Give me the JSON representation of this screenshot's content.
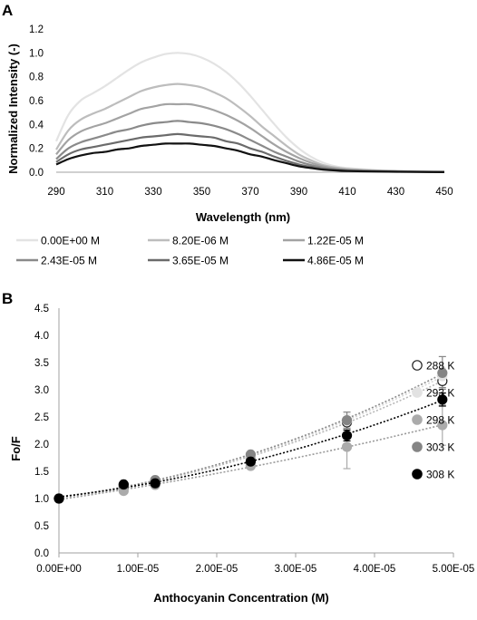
{
  "chart_data": [
    {
      "panel": "A",
      "type": "line",
      "xlabel": "Wavelength (nm)",
      "ylabel": "Normalized Intensity (-)",
      "xlim": [
        290,
        450
      ],
      "ylim": [
        0,
        1.2
      ],
      "xticks": [
        "290",
        "310",
        "330",
        "350",
        "370",
        "390",
        "410",
        "430",
        "450"
      ],
      "yticks": [
        "0.0",
        "0.2",
        "0.4",
        "0.6",
        "0.8",
        "1.0",
        "1.2"
      ],
      "legend_position": "bottom",
      "x": [
        290,
        295,
        300,
        305,
        310,
        315,
        320,
        325,
        330,
        335,
        340,
        345,
        350,
        355,
        360,
        365,
        370,
        375,
        380,
        385,
        390,
        395,
        400,
        405,
        410,
        420,
        430,
        440,
        450
      ],
      "series": [
        {
          "name": "0.00E+00 M",
          "color": "#e3e3e3",
          "width": 2.2,
          "values": [
            0.26,
            0.48,
            0.6,
            0.66,
            0.72,
            0.79,
            0.86,
            0.92,
            0.96,
            0.99,
            1.0,
            0.99,
            0.96,
            0.91,
            0.84,
            0.75,
            0.64,
            0.52,
            0.4,
            0.29,
            0.2,
            0.13,
            0.08,
            0.05,
            0.035,
            0.02,
            0.012,
            0.008,
            0.005
          ]
        },
        {
          "name": "8.20E-06 M",
          "color": "#bdbdbd",
          "width": 2.2,
          "values": [
            0.19,
            0.35,
            0.44,
            0.49,
            0.53,
            0.58,
            0.63,
            0.68,
            0.71,
            0.73,
            0.74,
            0.73,
            0.71,
            0.67,
            0.62,
            0.55,
            0.47,
            0.38,
            0.3,
            0.22,
            0.15,
            0.1,
            0.06,
            0.04,
            0.027,
            0.016,
            0.01,
            0.006,
            0.004
          ]
        },
        {
          "name": "1.22E-05 M",
          "color": "#a3a3a3",
          "width": 2.2,
          "values": [
            0.15,
            0.27,
            0.34,
            0.38,
            0.41,
            0.45,
            0.49,
            0.53,
            0.55,
            0.57,
            0.57,
            0.57,
            0.55,
            0.52,
            0.48,
            0.43,
            0.37,
            0.3,
            0.23,
            0.17,
            0.12,
            0.08,
            0.05,
            0.032,
            0.022,
            0.013,
            0.008,
            0.005,
            0.003
          ]
        },
        {
          "name": "2.43E-05 M",
          "color": "#8a8a8a",
          "width": 2.2,
          "values": [
            0.11,
            0.2,
            0.25,
            0.28,
            0.31,
            0.34,
            0.36,
            0.39,
            0.41,
            0.42,
            0.43,
            0.42,
            0.41,
            0.39,
            0.36,
            0.32,
            0.27,
            0.22,
            0.17,
            0.13,
            0.09,
            0.06,
            0.038,
            0.025,
            0.017,
            0.01,
            0.006,
            0.004,
            0.002
          ]
        },
        {
          "name": "3.65E-05 M",
          "color": "#6b6b6b",
          "width": 2.2,
          "values": [
            0.085,
            0.15,
            0.19,
            0.21,
            0.23,
            0.25,
            0.27,
            0.29,
            0.3,
            0.31,
            0.32,
            0.31,
            0.3,
            0.29,
            0.26,
            0.24,
            0.2,
            0.17,
            0.13,
            0.095,
            0.065,
            0.045,
            0.028,
            0.019,
            0.013,
            0.008,
            0.005,
            0.003,
            0.002
          ]
        },
        {
          "name": "4.86E-05 M",
          "color": "#111111",
          "width": 2.2,
          "values": [
            0.065,
            0.11,
            0.14,
            0.16,
            0.17,
            0.19,
            0.2,
            0.22,
            0.23,
            0.24,
            0.24,
            0.24,
            0.23,
            0.22,
            0.2,
            0.18,
            0.15,
            0.13,
            0.1,
            0.075,
            0.05,
            0.035,
            0.022,
            0.015,
            0.01,
            0.006,
            0.004,
            0.002,
            0.001
          ]
        }
      ]
    },
    {
      "panel": "B",
      "type": "scatter",
      "xlabel": "Anthocyanin Concentration (M)",
      "ylabel": "Fo/F",
      "xlim": [
        0,
        5e-05
      ],
      "ylim": [
        0,
        4.5
      ],
      "xticks": [
        "0.00E+00",
        "1.00E-05",
        "2.00E-05",
        "3.00E-05",
        "4.00E-05",
        "5.00E-05"
      ],
      "yticks": [
        "0.0",
        "0.5",
        "1.0",
        "1.5",
        "2.0",
        "2.5",
        "3.0",
        "3.5",
        "4.0",
        "4.5"
      ],
      "legend_position": "right",
      "x": [
        0,
        8.2e-06,
        1.22e-05,
        2.43e-05,
        3.65e-05,
        4.86e-05
      ],
      "series": [
        {
          "name": "288 K",
          "color": "#ffffff",
          "stroke": "#222222",
          "trend": "#b8b8b8",
          "values": [
            1.0,
            1.23,
            1.31,
            1.76,
            2.4,
            3.16
          ],
          "errors": [
            0,
            0,
            0,
            0,
            0.1,
            0.12
          ]
        },
        {
          "name": "293 K",
          "color": "#e2e2e2",
          "stroke": "#e2e2e2",
          "trend": "#d6d6d6",
          "values": [
            1.0,
            1.25,
            1.33,
            1.78,
            2.43,
            3.25
          ],
          "errors": [
            0,
            0,
            0,
            0,
            0.12,
            0.15
          ]
        },
        {
          "name": "298 K",
          "color": "#ababab",
          "stroke": "#ababab",
          "trend": "#9a9a9a",
          "values": [
            1.0,
            1.14,
            1.25,
            1.6,
            1.95,
            2.35
          ],
          "errors": [
            0,
            0,
            0,
            0,
            0.4,
            0.37
          ]
        },
        {
          "name": "303 K",
          "color": "#858585",
          "stroke": "#858585",
          "trend": "#8a8a8a",
          "values": [
            1.0,
            1.25,
            1.34,
            1.81,
            2.44,
            3.31
          ],
          "errors": [
            0,
            0,
            0,
            0,
            0.15,
            0.3
          ]
        },
        {
          "name": "308 K",
          "color": "#000000",
          "stroke": "#000000",
          "trend": "#000000",
          "values": [
            1.0,
            1.26,
            1.28,
            1.68,
            2.16,
            2.82
          ],
          "errors": [
            0,
            0,
            0,
            0,
            0.1,
            0.12
          ]
        }
      ]
    }
  ]
}
